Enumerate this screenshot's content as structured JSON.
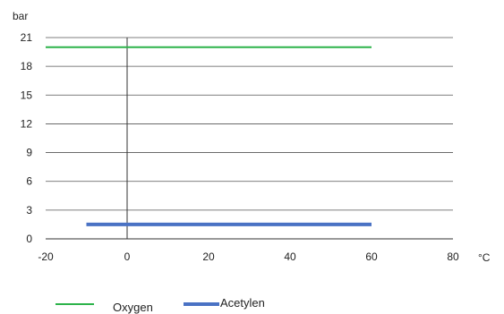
{
  "chart_data": {
    "type": "line",
    "title": "",
    "xlabel": "°C",
    "ylabel": "bar",
    "xlim": [
      -20,
      80
    ],
    "ylim": [
      0,
      21
    ],
    "x_ticks": [
      -20,
      0,
      20,
      40,
      60,
      80
    ],
    "y_ticks": [
      0,
      3,
      6,
      9,
      12,
      15,
      18,
      21
    ],
    "grid": "horizontal",
    "legend_position": "bottom-left",
    "series": [
      {
        "name": "Oxygen",
        "color": "#2db34a",
        "x": [
          -20,
          60
        ],
        "y": [
          20,
          20
        ]
      },
      {
        "name": "Acetylen",
        "color": "#4a72c4",
        "x": [
          -10,
          60
        ],
        "y": [
          1.5,
          1.5
        ]
      }
    ]
  }
}
